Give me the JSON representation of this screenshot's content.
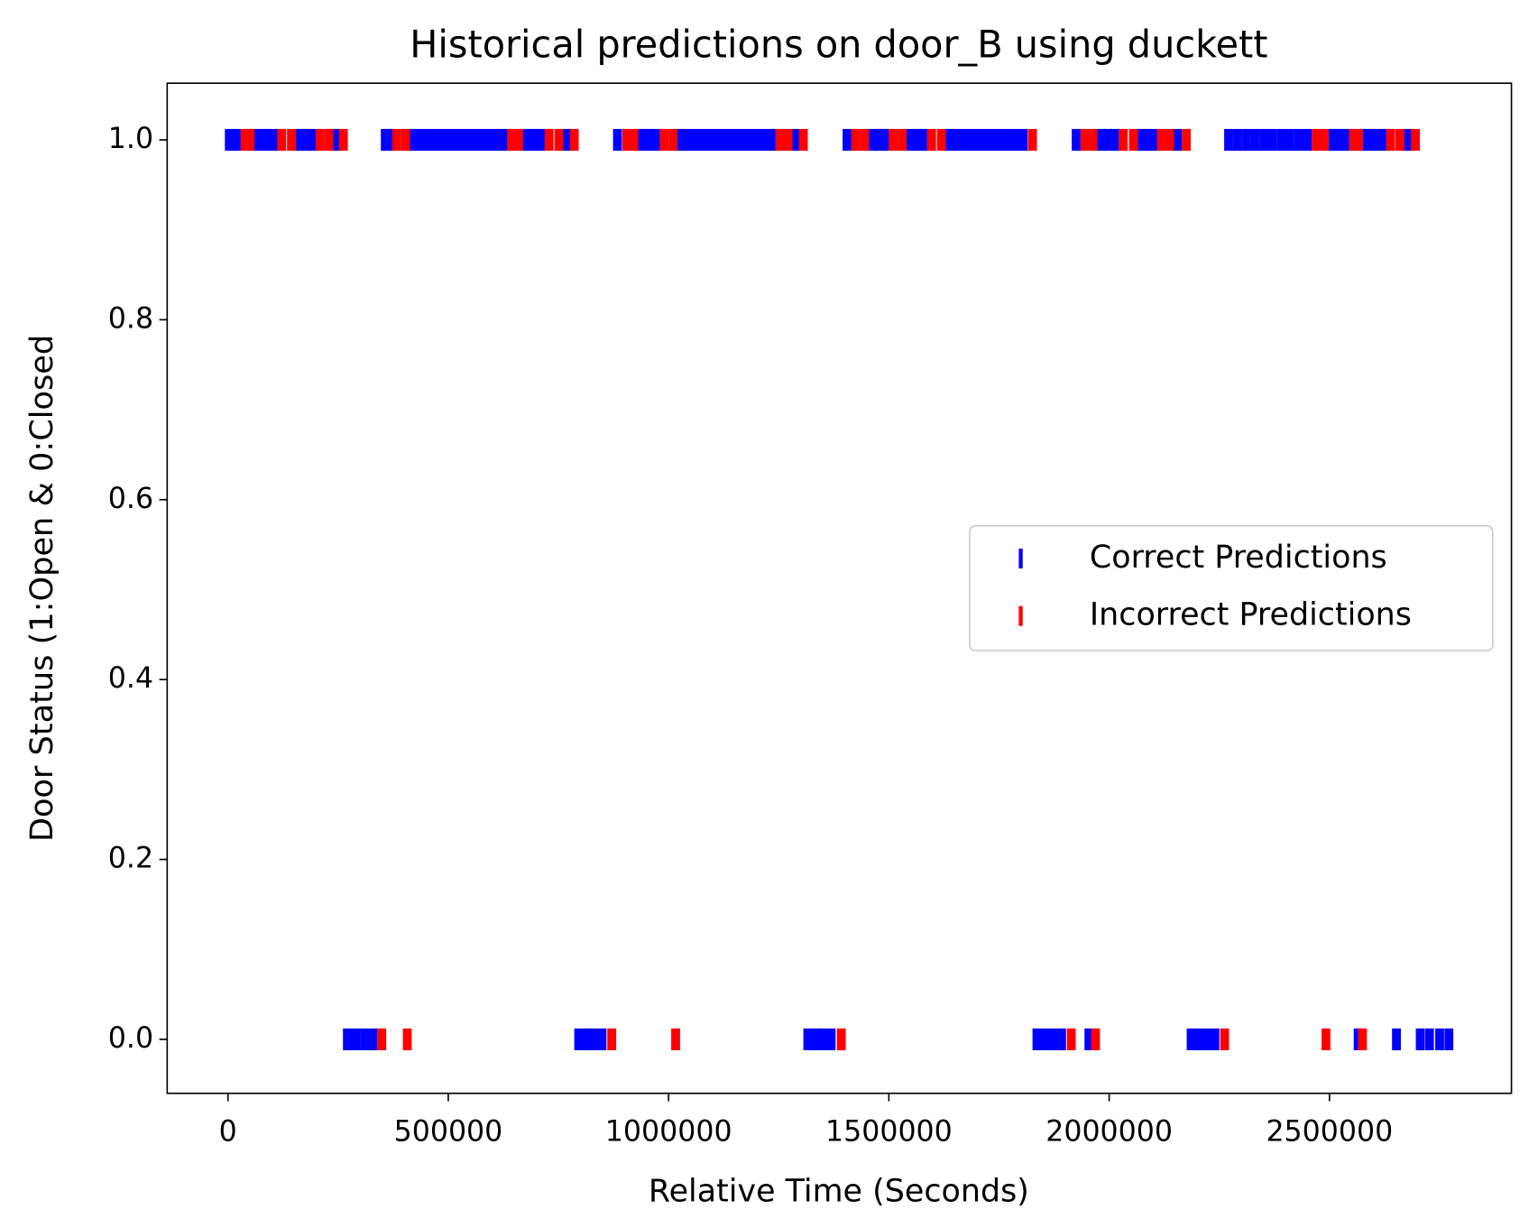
{
  "chart_data": {
    "type": "scatter",
    "title": "Historical predictions on door_B using duckett",
    "x_label": "Relative Time (Seconds)",
    "y_label": "Door Status (1:Open & 0:Closed",
    "xlim": [
      -138000,
      2913000
    ],
    "ylim": [
      -0.06,
      1.063
    ],
    "xticks": [
      0,
      500000,
      1000000,
      1500000,
      2000000,
      2500000
    ],
    "yticks": [
      {
        "value": 0,
        "label": "0.0"
      },
      0.2,
      0.4,
      0.6,
      0.8,
      {
        "value": 1,
        "label": "1.0"
      }
    ],
    "legend": "center right",
    "series": [
      {
        "name": "Correct Predictions",
        "color": "#0000ff",
        "x": [
          3000,
          19000,
          70000,
          86000,
          102000,
          164000,
          177000,
          189000,
          245000,
          357000,
          364000,
          423000,
          441000,
          460000,
          478000,
          496000,
          514000,
          533000,
          551000,
          569000,
          587000,
          606000,
          624000,
          680000,
          694000,
          709000,
          768000,
          884000,
          941000,
          955000,
          970000,
          1030000,
          1048000,
          1067000,
          1085000,
          1104000,
          1122000,
          1141000,
          1159000,
          1177000,
          1196000,
          1214000,
          1233000,
          1288000,
          1405000,
          1465000,
          1478000,
          1490000,
          1550000,
          1564000,
          1577000,
          1639000,
          1657000,
          1676000,
          1694000,
          1713000,
          1731000,
          1750000,
          1768000,
          1787000,
          1805000,
          1925000,
          1983000,
          1997000,
          2012000,
          2075000,
          2087000,
          2099000,
          2155000,
          2271000,
          2291000,
          2311000,
          2331000,
          2351000,
          2370000,
          2390000,
          2410000,
          2430000,
          2450000,
          2508000,
          2522000,
          2535000,
          2586000,
          2602000,
          2619000,
          2676000,
          271000,
          290000,
          310000,
          329000,
          796000,
          814000,
          831000,
          849000,
          1316000,
          1334000,
          1351000,
          1369000,
          1836000,
          1855000,
          1873000,
          1892000,
          1954000,
          2186000,
          2204000,
          2222000,
          2240000,
          2565000,
          2652000,
          2706000,
          2727000,
          2750000,
          2771000
        ],
        "y": [
          1,
          1,
          1,
          1,
          1,
          1,
          1,
          1,
          1,
          1,
          1,
          1,
          1,
          1,
          1,
          1,
          1,
          1,
          1,
          1,
          1,
          1,
          1,
          1,
          1,
          1,
          1,
          1,
          1,
          1,
          1,
          1,
          1,
          1,
          1,
          1,
          1,
          1,
          1,
          1,
          1,
          1,
          1,
          1,
          1,
          1,
          1,
          1,
          1,
          1,
          1,
          1,
          1,
          1,
          1,
          1,
          1,
          1,
          1,
          1,
          1,
          1,
          1,
          1,
          1,
          1,
          1,
          1,
          1,
          1,
          1,
          1,
          1,
          1,
          1,
          1,
          1,
          1,
          1,
          1,
          1,
          1,
          1,
          1,
          1,
          1,
          0,
          0,
          0,
          0,
          0,
          0,
          0,
          0,
          0,
          0,
          0,
          0,
          0,
          0,
          0,
          0,
          0,
          0,
          0,
          0,
          0,
          0,
          0,
          0,
          0,
          0,
          0
        ]
      },
      {
        "name": "Incorrect Predictions",
        "color": "#ff0000",
        "x": [
          39000,
          50000,
          122000,
          144000,
          209000,
          229000,
          262000,
          383000,
          403000,
          644000,
          660000,
          729000,
          751000,
          786000,
          905000,
          921000,
          990000,
          1010000,
          1253000,
          1271000,
          1306000,
          1425000,
          1445000,
          1510000,
          1530000,
          1597000,
          1619000,
          1826000,
          1945000,
          1963000,
          2032000,
          2055000,
          2119000,
          2137000,
          2175000,
          2470000,
          2488000,
          2555000,
          2566000,
          2639000,
          2660000,
          2695000,
          349000,
          407000,
          871000,
          1016000,
          1392000,
          1914000,
          1969000,
          2262000,
          2492000,
          2575000
        ],
        "y": [
          1,
          1,
          1,
          1,
          1,
          1,
          1,
          1,
          1,
          1,
          1,
          1,
          1,
          1,
          1,
          1,
          1,
          1,
          1,
          1,
          1,
          1,
          1,
          1,
          1,
          1,
          1,
          1,
          1,
          1,
          1,
          1,
          1,
          1,
          1,
          1,
          1,
          1,
          1,
          1,
          1,
          1,
          0,
          0,
          0,
          0,
          0,
          0,
          0,
          0,
          0,
          0
        ]
      }
    ]
  }
}
